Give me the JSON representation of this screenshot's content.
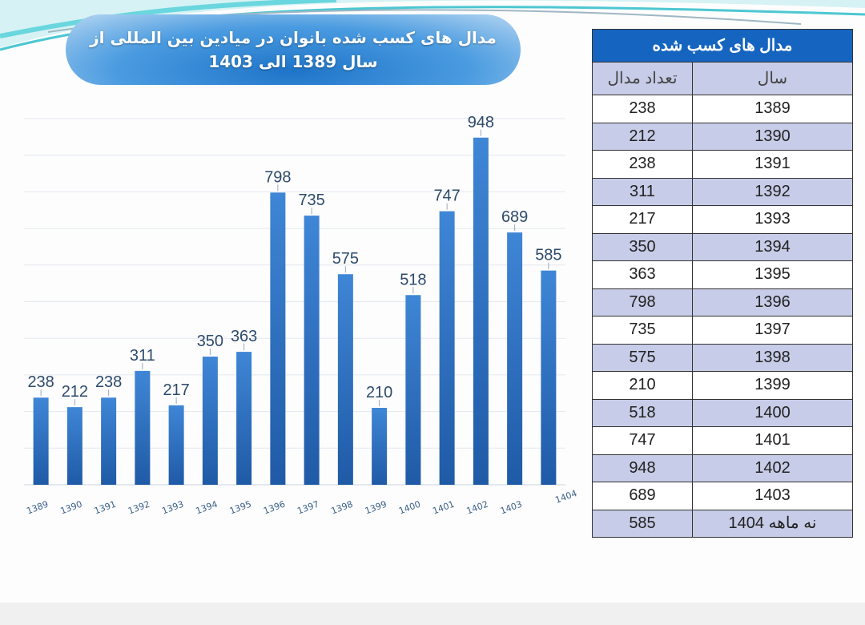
{
  "title_lines": [
    "مدال های کسب شده بانوان در میادین بین المللی از",
    "سال 1389 الی 1403"
  ],
  "chart_data": {
    "type": "bar",
    "categories": [
      "1389",
      "1390",
      "1391",
      "1392",
      "1393",
      "1394",
      "1395",
      "1396",
      "1397",
      "1398",
      "1399",
      "1400",
      "1401",
      "1402",
      "1403",
      "نه ماهه 1404"
    ],
    "values": [
      238,
      212,
      238,
      311,
      217,
      350,
      363,
      798,
      735,
      575,
      210,
      518,
      747,
      948,
      689,
      585
    ],
    "ylim": [
      0,
      1000
    ],
    "grid": true,
    "bar_color": "#2f6fbf",
    "data_labels": true
  },
  "table": {
    "title": "مدال های کسب شده",
    "headers": {
      "count": "تعداد مدال",
      "year": "سال"
    },
    "rows": [
      {
        "count": "238",
        "year": "1389"
      },
      {
        "count": "212",
        "year": "1390"
      },
      {
        "count": "238",
        "year": "1391"
      },
      {
        "count": "311",
        "year": "1392"
      },
      {
        "count": "217",
        "year": "1393"
      },
      {
        "count": "350",
        "year": "1394"
      },
      {
        "count": "363",
        "year": "1395"
      },
      {
        "count": "798",
        "year": "1396"
      },
      {
        "count": "735",
        "year": "1397"
      },
      {
        "count": "575",
        "year": "1398"
      },
      {
        "count": "210",
        "year": "1399"
      },
      {
        "count": "518",
        "year": "1400"
      },
      {
        "count": "747",
        "year": "1401"
      },
      {
        "count": "948",
        "year": "1402"
      },
      {
        "count": "689",
        "year": "1403"
      },
      {
        "count": "585",
        "year": "نه ماهه 1404"
      }
    ]
  }
}
